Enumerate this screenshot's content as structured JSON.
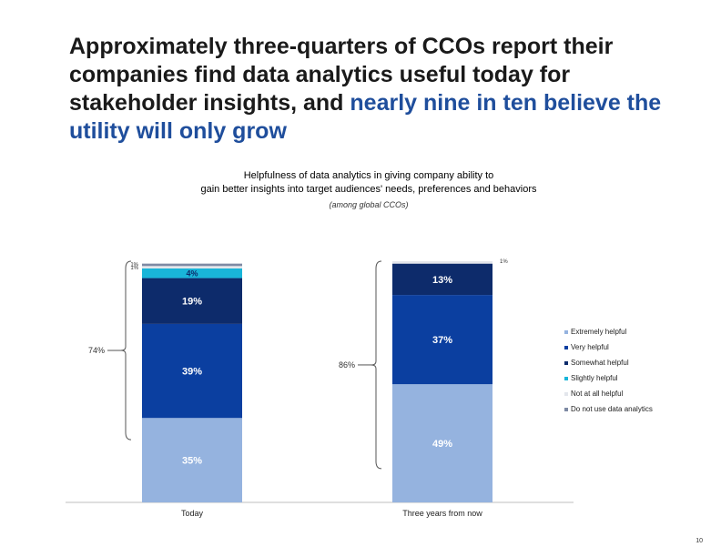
{
  "headline": {
    "part1": "Approximately three-quarters of CCOs report their companies find data analytics useful today for stakeholder insights, and ",
    "part2": "nearly nine in ten believe the utility will only grow"
  },
  "page_number": "10",
  "colors": {
    "extremely": "#95b3df",
    "very": "#0b3fa0",
    "somewhat": "#0d2b6b",
    "slightly": "#19b5d9",
    "not_at_all": "#e3e6ec",
    "do_not_use": "#7e8aa4",
    "accent": "#1f4e9c"
  },
  "chart_data": {
    "type": "bar",
    "stacked": true,
    "title": "Helpfulness of data analytics in giving company ability to gain better insights into target audiences' needs, preferences and behaviors",
    "title_line1": "Helpfulness of data analytics in giving company ability to",
    "title_line2": "gain better insights into target audiences' needs, preferences and behaviors",
    "subtitle": "(among global CCOs)",
    "categories": [
      "Today",
      "Three years from now"
    ],
    "ylim": [
      0,
      100
    ],
    "legend_position": "right",
    "series": [
      {
        "name": "Extremely helpful",
        "values": [
          35,
          49
        ],
        "labels": [
          "35%",
          "49%"
        ],
        "color": "#95b3df"
      },
      {
        "name": "Very helpful",
        "values": [
          39,
          37
        ],
        "labels": [
          "39%",
          "37%"
        ],
        "color": "#0b3fa0"
      },
      {
        "name": "Somewhat helpful",
        "values": [
          19,
          13
        ],
        "labels": [
          "19%",
          "13%"
        ],
        "color": "#0d2b6b"
      },
      {
        "name": "Slightly helpful",
        "values": [
          4,
          0
        ],
        "labels": [
          "4%",
          ""
        ],
        "color": "#19b5d9"
      },
      {
        "name": "Not at all helpful",
        "values": [
          1,
          1
        ],
        "labels": [
          "1%",
          "1%"
        ],
        "color": "#e3e6ec"
      },
      {
        "name": "Do not use data analytics",
        "values": [
          1,
          0
        ],
        "labels": [
          "1%",
          ""
        ],
        "color": "#7e8aa4"
      }
    ],
    "brackets": [
      {
        "category": "Today",
        "label": "74%"
      },
      {
        "category": "Three years from now",
        "label": "86%"
      }
    ]
  }
}
